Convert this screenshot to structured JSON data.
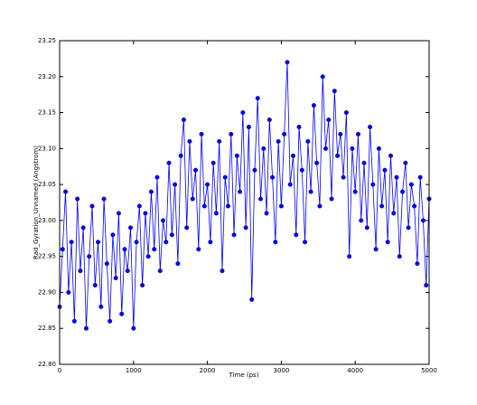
{
  "chart_data": {
    "type": "line",
    "x_label": "Time (ps)",
    "y_label": "Rad_Gyration_Unnamed (Angstrom)",
    "x": [
      0,
      40,
      80,
      120,
      160,
      200,
      240,
      280,
      320,
      360,
      400,
      440,
      480,
      520,
      560,
      600,
      640,
      680,
      720,
      760,
      800,
      840,
      880,
      920,
      960,
      1000,
      1040,
      1080,
      1120,
      1160,
      1200,
      1240,
      1280,
      1320,
      1360,
      1400,
      1440,
      1480,
      1520,
      1560,
      1600,
      1640,
      1680,
      1720,
      1760,
      1800,
      1840,
      1880,
      1920,
      1960,
      2000,
      2040,
      2080,
      2120,
      2160,
      2200,
      2240,
      2280,
      2320,
      2360,
      2400,
      2440,
      2480,
      2520,
      2560,
      2600,
      2640,
      2680,
      2720,
      2760,
      2800,
      2840,
      2880,
      2920,
      2960,
      3000,
      3040,
      3080,
      3120,
      3160,
      3200,
      3240,
      3280,
      3320,
      3360,
      3400,
      3440,
      3480,
      3520,
      3560,
      3600,
      3640,
      3680,
      3720,
      3760,
      3800,
      3840,
      3880,
      3920,
      3960,
      4000,
      4040,
      4080,
      4120,
      4160,
      4200,
      4240,
      4280,
      4320,
      4360,
      4400,
      4440,
      4480,
      4520,
      4560,
      4600,
      4640,
      4680,
      4720,
      4760,
      4800,
      4840,
      4880,
      4920,
      4960,
      5000
    ],
    "series": [
      {
        "color": "#0000ff",
        "values": [
          22.88,
          22.96,
          23.04,
          22.9,
          22.97,
          22.86,
          23.03,
          22.93,
          22.99,
          22.85,
          22.95,
          23.02,
          22.91,
          22.97,
          22.88,
          23.03,
          22.94,
          22.86,
          22.98,
          22.92,
          23.01,
          22.87,
          22.96,
          22.93,
          22.99,
          22.85,
          22.97,
          23.02,
          22.91,
          23.01,
          22.95,
          23.04,
          22.96,
          23.06,
          22.93,
          23.0,
          22.97,
          23.08,
          22.98,
          23.05,
          22.94,
          23.09,
          23.14,
          22.99,
          23.11,
          23.03,
          23.07,
          22.96,
          23.12,
          23.02,
          23.05,
          22.97,
          23.08,
          23.01,
          23.11,
          22.93,
          23.06,
          23.02,
          23.12,
          22.98,
          23.09,
          23.04,
          23.15,
          22.99,
          23.13,
          22.89,
          23.07,
          23.17,
          23.03,
          23.1,
          23.01,
          23.14,
          23.06,
          22.97,
          23.11,
          23.02,
          23.12,
          23.22,
          23.05,
          23.09,
          22.98,
          23.13,
          23.07,
          22.97,
          23.11,
          23.04,
          23.16,
          23.08,
          23.02,
          23.2,
          23.1,
          23.14,
          23.03,
          23.18,
          23.09,
          23.12,
          23.06,
          23.15,
          22.95,
          23.1,
          23.04,
          23.12,
          23.0,
          23.08,
          22.99,
          23.13,
          23.05,
          22.96,
          23.1,
          23.02,
          23.07,
          22.97,
          23.09,
          23.01,
          23.06,
          22.95,
          23.04,
          23.08,
          22.99,
          23.05,
          23.02,
          22.94,
          23.06,
          23.0,
          22.91,
          23.03
        ]
      }
    ],
    "xlim": [
      0,
      5000
    ],
    "xticks": [
      0,
      1000,
      2000,
      3000,
      4000,
      5000
    ],
    "ylim": [
      22.8,
      23.25
    ],
    "yticks": [
      {
        "value": 22.8,
        "label": "22.80"
      },
      22.85,
      {
        "value": 22.9,
        "label": "22.90"
      },
      22.95,
      {
        "value": 23.0,
        "label": "23.00"
      },
      23.05,
      {
        "value": 23.1,
        "label": "23.10"
      },
      23.15,
      {
        "value": 23.2,
        "label": "23.20"
      },
      23.25
    ]
  }
}
